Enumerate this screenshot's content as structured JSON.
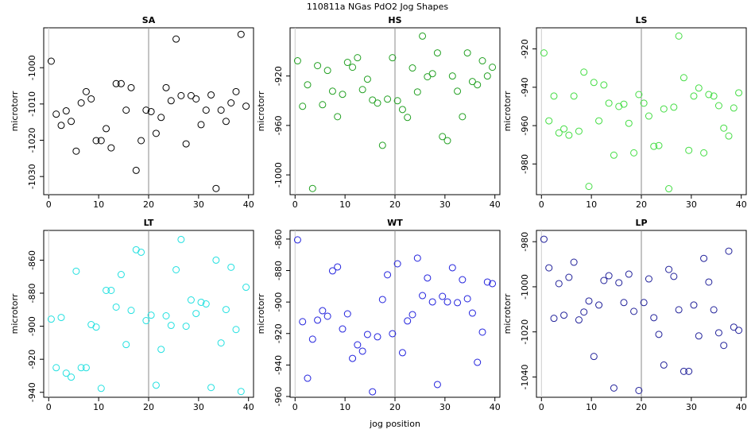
{
  "title": "110811a   NGas PdO2 Jog Shapes",
  "xlabel": "jog position",
  "chart_data": [
    {
      "type": "scatter",
      "title": "SA",
      "ylabel": "microtorr",
      "color": "#000000",
      "x": [
        0.5,
        1.5,
        2.5,
        3.5,
        4.5,
        5.5,
        6.5,
        7.5,
        8.5,
        9.5,
        10.5,
        11.5,
        12.5,
        13.5,
        14.5,
        15.5,
        16.5,
        17.5,
        18.5,
        19.5,
        20.5,
        21.5,
        22.5,
        23.5,
        24.5,
        25.5,
        26.5,
        27.5,
        28.5,
        29.5,
        30.5,
        31.5,
        32.5,
        33.5,
        34.5,
        35.5,
        36.5,
        37.5,
        38.5,
        39.5
      ],
      "values": [
        -998.2,
        -1012.8,
        -1015.9,
        -1011.9,
        -1014.8,
        -1023,
        -1009.7,
        -1006.6,
        -1008.6,
        -1020.1,
        -1020.1,
        -1016.8,
        -1022.1,
        -1004.4,
        -1004.4,
        -1011.7,
        -1005.5,
        -1028.3,
        -1020.1,
        -1011.7,
        -1012.1,
        -1018.1,
        -1013.7,
        -1005.5,
        -1009.1,
        -992.1,
        -1007.7,
        -1021,
        -1007.7,
        -1008.6,
        -1015.7,
        -1011.7,
        -1007.5,
        -1033.3,
        -1011.7,
        -1014.8,
        -1009.7,
        -1006.6,
        -990.8,
        -1010.6
      ],
      "xlim": [
        -1,
        41
      ],
      "ylim": [
        -1035,
        -989
      ],
      "xticks": [
        0,
        10,
        20,
        30,
        40
      ],
      "yticks": [
        -1030,
        -1020,
        -1010,
        -1000
      ],
      "vline": 20
    },
    {
      "type": "scatter",
      "title": "HS",
      "ylabel": "microtorr",
      "color": "#22a022",
      "x": [
        0.5,
        1.5,
        2.5,
        3.5,
        4.5,
        5.5,
        6.5,
        7.5,
        8.5,
        9.5,
        10.5,
        11.5,
        12.5,
        13.5,
        14.5,
        15.5,
        16.5,
        17.5,
        18.5,
        19.5,
        20.5,
        21.5,
        22.5,
        23.5,
        24.5,
        25.5,
        26.5,
        27.5,
        28.5,
        29.5,
        30.5,
        31.5,
        32.5,
        33.5,
        34.5,
        35.5,
        36.5,
        37.5,
        38.5,
        39.5
      ],
      "values": [
        -907.7,
        -944.5,
        -927.1,
        -1011,
        -911.6,
        -943.2,
        -915.5,
        -932.3,
        -952.9,
        -934.8,
        -909,
        -912.9,
        -905.2,
        -931,
        -922.6,
        -939.4,
        -941.9,
        -976.1,
        -938.7,
        -905.2,
        -940,
        -947.1,
        -953.5,
        -913.5,
        -932.9,
        -887.7,
        -920.6,
        -918.1,
        -901.3,
        -969,
        -972.3,
        -920,
        -932.3,
        -952.9,
        -901.3,
        -924.5,
        -927.1,
        -907.7,
        -920,
        -912.9
      ],
      "xlim": [
        -1,
        41
      ],
      "ylim": [
        -1016,
        -881
      ],
      "xticks": [
        0,
        10,
        20,
        30,
        40
      ],
      "yticks": [
        -1000,
        -960,
        -920
      ],
      "vline": 20
    },
    {
      "type": "scatter",
      "title": "LS",
      "ylabel": "microtorr",
      "color": "#44dd44",
      "x": [
        0.5,
        1.5,
        2.5,
        3.5,
        4.5,
        5.5,
        6.5,
        7.5,
        8.5,
        9.5,
        10.5,
        11.5,
        12.5,
        13.5,
        14.5,
        15.5,
        16.5,
        17.5,
        18.5,
        19.5,
        20.5,
        21.5,
        22.5,
        23.5,
        24.5,
        25.5,
        26.5,
        27.5,
        28.5,
        29.5,
        30.5,
        31.5,
        32.5,
        33.5,
        34.5,
        35.5,
        36.5,
        37.5,
        38.5,
        39.5
      ],
      "values": [
        -922.1,
        -957.5,
        -944.6,
        -963.8,
        -961.7,
        -965,
        -944.6,
        -962.9,
        -932.1,
        -991.7,
        -937.5,
        -957.5,
        -938.8,
        -948.3,
        -975.4,
        -950,
        -948.8,
        -958.8,
        -974.2,
        -943.8,
        -948.3,
        -955,
        -970.8,
        -970.4,
        -951.3,
        -992.9,
        -950.4,
        -913.3,
        -935,
        -972.9,
        -944.6,
        -940.4,
        -974.2,
        -943.8,
        -944.6,
        -949.6,
        -961.3,
        -965.4,
        -950.8,
        -942.9
      ],
      "xlim": [
        -1,
        41
      ],
      "ylim": [
        -996,
        -909
      ],
      "xticks": [
        0,
        10,
        20,
        30,
        40
      ],
      "yticks": [
        -980,
        -960,
        -940,
        -920
      ],
      "vline": 20
    },
    {
      "type": "scatter",
      "title": "LT",
      "ylabel": "microtorr",
      "color": "#22e0e0",
      "x": [
        0.5,
        1.5,
        2.5,
        3.5,
        4.5,
        5.5,
        6.5,
        7.5,
        8.5,
        9.5,
        10.5,
        11.5,
        12.5,
        13.5,
        14.5,
        15.5,
        16.5,
        17.5,
        18.5,
        19.5,
        20.5,
        21.5,
        22.5,
        23.5,
        24.5,
        25.5,
        26.5,
        27.5,
        28.5,
        29.5,
        30.5,
        31.5,
        32.5,
        33.5,
        34.5,
        35.5,
        36.5,
        37.5,
        38.5,
        39.5
      ],
      "values": [
        -895.7,
        -925.1,
        -894.7,
        -928.4,
        -930.8,
        -866.7,
        -925.1,
        -925.1,
        -899,
        -900.5,
        -937.6,
        -878.3,
        -878.3,
        -888.4,
        -868.7,
        -911.1,
        -890.4,
        -853.7,
        -855.2,
        -896.6,
        -893.3,
        -935.7,
        -914,
        -893.7,
        -899.5,
        -865.8,
        -847.5,
        -900,
        -884.1,
        -892.3,
        -885.5,
        -886.5,
        -937.1,
        -860,
        -910.1,
        -889.9,
        -864.3,
        -902,
        -939.5,
        -876.4
      ],
      "xlim": [
        -1,
        41
      ],
      "ylim": [
        -943,
        -842
      ],
      "xticks": [
        0,
        10,
        20,
        30,
        40
      ],
      "yticks": [
        -940,
        -920,
        -900,
        -880,
        -860
      ],
      "vline": 20
    },
    {
      "type": "scatter",
      "title": "WT",
      "ylabel": "microtorr",
      "color": "#2222dd",
      "x": [
        0.5,
        1.5,
        2.5,
        3.5,
        4.5,
        5.5,
        6.5,
        7.5,
        8.5,
        9.5,
        10.5,
        11.5,
        12.5,
        13.5,
        14.5,
        15.5,
        16.5,
        17.5,
        18.5,
        19.5,
        20.5,
        21.5,
        22.5,
        23.5,
        24.5,
        25.5,
        26.5,
        27.5,
        28.5,
        29.5,
        30.5,
        31.5,
        32.5,
        33.5,
        34.5,
        35.5,
        36.5,
        37.5,
        38.5,
        39.5
      ],
      "values": [
        -860.5,
        -912.5,
        -948.4,
        -923.6,
        -911.5,
        -905.5,
        -909,
        -880.2,
        -877.7,
        -917.1,
        -907.5,
        -935.8,
        -927.2,
        -931.2,
        -920.6,
        -957,
        -922.1,
        -898.4,
        -882.7,
        -920.1,
        -875.7,
        -932.2,
        -912,
        -908,
        -872.1,
        -895.9,
        -884.7,
        -899.9,
        -952.4,
        -896.4,
        -899.9,
        -878.2,
        -900.4,
        -885.8,
        -897.9,
        -907,
        -938.3,
        -919.1,
        -887.3,
        -888.3
      ],
      "xlim": [
        -1,
        41
      ],
      "ylim": [
        -960.5,
        -854.5
      ],
      "xticks": [
        0,
        10,
        20,
        30,
        40
      ],
      "yticks": [
        -960,
        -940,
        -920,
        -900,
        -880,
        -860
      ],
      "vline": 20
    },
    {
      "type": "scatter",
      "title": "LP",
      "ylabel": "microtorr",
      "color": "#22229a",
      "x": [
        0.5,
        1.5,
        2.5,
        3.5,
        4.5,
        5.5,
        6.5,
        7.5,
        8.5,
        9.5,
        10.5,
        11.5,
        12.5,
        13.5,
        14.5,
        15.5,
        16.5,
        17.5,
        18.5,
        19.5,
        20.5,
        21.5,
        22.5,
        23.5,
        24.5,
        25.5,
        26.5,
        27.5,
        28.5,
        29.5,
        30.5,
        31.5,
        32.5,
        33.5,
        34.5,
        35.5,
        36.5,
        37.5,
        38.5,
        39.5
      ],
      "values": [
        -978.9,
        -991.6,
        -1014,
        -998.6,
        -1012.6,
        -995.8,
        -989.1,
        -1014.7,
        -1011.2,
        -1006.3,
        -1030.9,
        -1008.1,
        -997.2,
        -995.1,
        -1044.9,
        -998.2,
        -1007,
        -994.4,
        -1010.9,
        -1046,
        -1007,
        -996.5,
        -1013.7,
        -1021.1,
        -1034.7,
        -992.3,
        -995.4,
        -1010.2,
        -1037.5,
        -1037.5,
        -1008.1,
        -1021.8,
        -987.4,
        -997.9,
        -1010.2,
        -1020.4,
        -1026,
        -984.2,
        -1017.9,
        -1019.3
      ],
      "xlim": [
        -1,
        41
      ],
      "ylim": [
        -1049,
        -975
      ],
      "xticks": [
        0,
        10,
        20,
        30,
        40
      ],
      "yticks": [
        -1040,
        -1020,
        -1000,
        -980
      ],
      "vline": 20
    }
  ]
}
